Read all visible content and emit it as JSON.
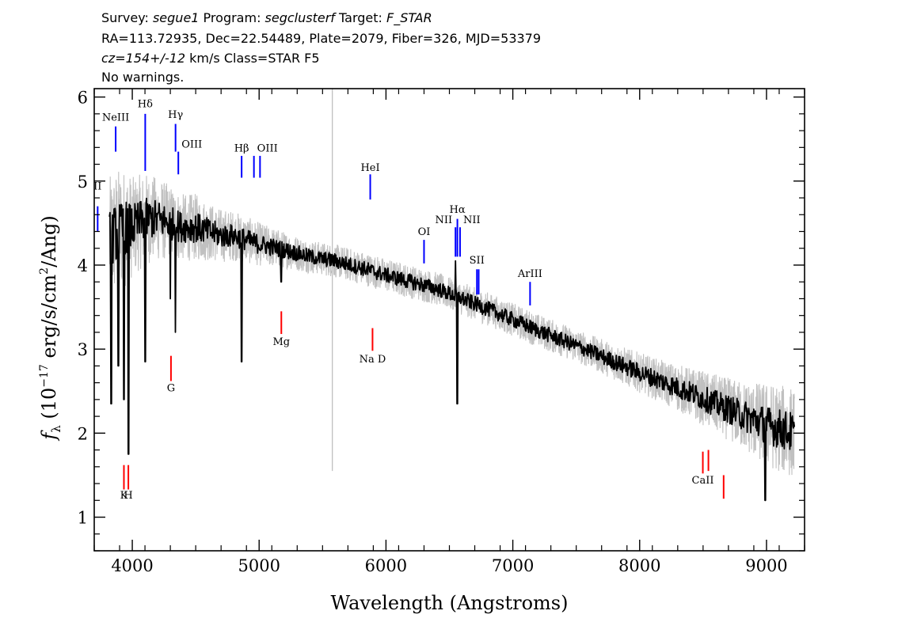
{
  "header": {
    "survey_label": "Survey: ",
    "survey": "segue1",
    "program_label": " Program: ",
    "program": "segclusterf",
    "target_label": " Target: ",
    "target": "F_STAR",
    "line2": "RA=113.72935, Dec=22.54489, Plate=2079, Fiber=326, MJD=53379",
    "cz": "cz=154+/-12",
    "line3_rest": " km/s Class=STAR F5",
    "line4": "No warnings."
  },
  "chart_data": {
    "type": "line",
    "xlabel": "Wavelength (Angstroms)",
    "ylabel_prefix": "f",
    "ylabel_sub": "λ",
    "ylabel_main": " (10",
    "ylabel_exp": "−17",
    "ylabel_rest": " erg/s/cm",
    "ylabel_exp2": "2",
    "ylabel_end": "/Ang)",
    "xlim": [
      3700,
      9300
    ],
    "ylim": [
      0.6,
      6.1
    ],
    "x_ticks": [
      4000,
      5000,
      6000,
      7000,
      8000,
      9000
    ],
    "y_ticks": [
      1,
      2,
      3,
      4,
      5,
      6
    ],
    "x_tick_labels": [
      "4000",
      "5000",
      "6000",
      "7000",
      "8000",
      "9000"
    ],
    "y_tick_labels": [
      "1",
      "2",
      "3",
      "4",
      "5",
      "6"
    ],
    "series": [
      {
        "role": "error_band",
        "color": "#c0c0c0",
        "x": [
          3820,
          3880,
          3950,
          4000,
          4100,
          4200,
          4300,
          4400,
          4500,
          4600,
          4700,
          4800,
          4900,
          5000,
          5200,
          5400,
          5600,
          5800,
          6000,
          6200,
          6400,
          6600,
          6800,
          7000,
          7200,
          7400,
          7600,
          7800,
          8000,
          8200,
          8400,
          8600,
          8800,
          9000,
          9220
        ],
        "y": [
          4.3,
          4.4,
          4.45,
          4.45,
          4.55,
          4.55,
          4.5,
          4.45,
          4.45,
          4.4,
          4.35,
          4.35,
          4.3,
          4.25,
          4.18,
          4.1,
          4.05,
          3.97,
          3.88,
          3.8,
          3.72,
          3.6,
          3.48,
          3.35,
          3.22,
          3.1,
          2.98,
          2.85,
          2.72,
          2.6,
          2.48,
          2.35,
          2.22,
          2.1,
          2.0
        ],
        "halfwidth": [
          0.75,
          0.75,
          0.7,
          0.6,
          0.55,
          0.5,
          0.45,
          0.4,
          0.4,
          0.35,
          0.32,
          0.3,
          0.28,
          0.26,
          0.22,
          0.2,
          0.2,
          0.2,
          0.2,
          0.2,
          0.2,
          0.2,
          0.2,
          0.2,
          0.2,
          0.2,
          0.2,
          0.22,
          0.24,
          0.26,
          0.3,
          0.35,
          0.4,
          0.5,
          0.55
        ]
      },
      {
        "role": "spectrum",
        "color": "#000000",
        "x": [
          3820,
          3880,
          3950,
          4000,
          4100,
          4200,
          4300,
          4400,
          4500,
          4600,
          4700,
          4800,
          4900,
          5000,
          5200,
          5400,
          5600,
          5800,
          6000,
          6200,
          6400,
          6600,
          6800,
          7000,
          7200,
          7400,
          7600,
          7800,
          8000,
          8200,
          8400,
          8600,
          8800,
          9000,
          9220
        ],
        "y": [
          4.3,
          4.4,
          4.45,
          4.45,
          4.55,
          4.55,
          4.5,
          4.45,
          4.45,
          4.4,
          4.35,
          4.35,
          4.3,
          4.25,
          4.18,
          4.1,
          4.05,
          3.97,
          3.88,
          3.8,
          3.72,
          3.6,
          3.48,
          3.35,
          3.22,
          3.1,
          2.98,
          2.85,
          2.72,
          2.6,
          2.48,
          2.35,
          2.22,
          2.1,
          2.0
        ],
        "absorption_features": [
          {
            "x": 3835,
            "y": 2.35
          },
          {
            "x": 3890,
            "y": 2.8
          },
          {
            "x": 3933,
            "y": 2.4
          },
          {
            "x": 3970,
            "y": 1.75
          },
          {
            "x": 4102,
            "y": 2.85
          },
          {
            "x": 4300,
            "y": 3.6
          },
          {
            "x": 4340,
            "y": 3.2
          },
          {
            "x": 4861,
            "y": 2.85
          },
          {
            "x": 5175,
            "y": 3.8
          },
          {
            "x": 6563,
            "y": 2.35
          },
          {
            "x": 8990,
            "y": 1.2
          }
        ],
        "emission_features": [
          {
            "x": 6548,
            "y": 4.05
          }
        ]
      },
      {
        "role": "sky_line",
        "color": "#c0c0c0",
        "x": [
          5577,
          5577
        ],
        "y": [
          1.55,
          6.1
        ]
      }
    ],
    "line_markers": [
      {
        "label": "NeIII",
        "x": 3869,
        "y1": 5.35,
        "y2": 5.65,
        "color": "#0000ff",
        "label_y": 5.72,
        "anchor": "middle"
      },
      {
        "label": "Hδ",
        "x": 4102,
        "y1": 5.12,
        "y2": 5.8,
        "color": "#0000ff",
        "label_y": 5.88,
        "anchor": "middle"
      },
      {
        "label": "Hγ",
        "x": 4341,
        "y1": 5.35,
        "y2": 5.68,
        "color": "#0000ff",
        "label_y": 5.75,
        "anchor": "middle"
      },
      {
        "label": "OIII",
        "x": 4363,
        "y1": 5.08,
        "y2": 5.35,
        "color": "#0000ff",
        "label_y": 5.4,
        "anchor": "start"
      },
      {
        "label": "Hβ",
        "x": 4862,
        "y1": 5.04,
        "y2": 5.3,
        "color": "#0000ff",
        "label_y": 5.35,
        "anchor": "middle"
      },
      {
        "label": "OIII",
        "x": 4959,
        "y1": 5.04,
        "y2": 5.3,
        "color": "#0000ff",
        "label_y": 5.35,
        "anchor": "start"
      },
      {
        "label": "",
        "x": 5007,
        "y1": 5.04,
        "y2": 5.3,
        "color": "#0000ff",
        "label_y": 5.35,
        "anchor": "start"
      },
      {
        "label": "HeI",
        "x": 5876,
        "y1": 4.78,
        "y2": 5.08,
        "color": "#0000ff",
        "label_y": 5.12,
        "anchor": "middle"
      },
      {
        "label": "OI",
        "x": 6300,
        "y1": 4.02,
        "y2": 4.3,
        "color": "#0000ff",
        "label_y": 4.36,
        "anchor": "middle"
      },
      {
        "label": "NII",
        "x": 6548,
        "y1": 4.1,
        "y2": 4.45,
        "color": "#0000ff",
        "label_y": 4.5,
        "anchor": "end"
      },
      {
        "label": "Hα",
        "x": 6563,
        "y1": 4.1,
        "y2": 4.55,
        "color": "#0000ff",
        "label_y": 4.62,
        "anchor": "middle"
      },
      {
        "label": "NII",
        "x": 6584,
        "y1": 4.1,
        "y2": 4.45,
        "color": "#0000ff",
        "label_y": 4.5,
        "anchor": "start"
      },
      {
        "label": "SII",
        "x": 6717,
        "y1": 3.65,
        "y2": 3.95,
        "color": "#0000ff",
        "label_y": 4.02,
        "anchor": "middle"
      },
      {
        "label": "",
        "x": 6731,
        "y1": 3.65,
        "y2": 3.95,
        "color": "#0000ff",
        "label_y": 4.02,
        "anchor": "middle"
      },
      {
        "label": "ArIII",
        "x": 7136,
        "y1": 3.52,
        "y2": 3.8,
        "color": "#0000ff",
        "label_y": 3.86,
        "anchor": "middle"
      },
      {
        "label": "II",
        "x": 3727,
        "y1": 4.4,
        "y2": 4.7,
        "color": "#0000ff",
        "label_y": 4.9,
        "anchor": "middle"
      },
      {
        "label": "K",
        "x": 3934,
        "y1": 1.33,
        "y2": 1.62,
        "color": "#ff0000",
        "label_y": 1.22,
        "anchor": "middle"
      },
      {
        "label": "H",
        "x": 3969,
        "y1": 1.33,
        "y2": 1.62,
        "color": "#ff0000",
        "label_y": 1.22,
        "anchor": "middle"
      },
      {
        "label": "G",
        "x": 4305,
        "y1": 2.62,
        "y2": 2.92,
        "color": "#ff0000",
        "label_y": 2.5,
        "anchor": "middle"
      },
      {
        "label": "Mg",
        "x": 5175,
        "y1": 3.18,
        "y2": 3.45,
        "color": "#ff0000",
        "label_y": 3.05,
        "anchor": "middle"
      },
      {
        "label": "Na D",
        "x": 5894,
        "y1": 2.98,
        "y2": 3.25,
        "color": "#ff0000",
        "label_y": 2.84,
        "anchor": "middle"
      },
      {
        "label": "CaII",
        "x": 8498,
        "y1": 1.52,
        "y2": 1.78,
        "color": "#ff0000",
        "label_y": 1.4,
        "anchor": "middle"
      },
      {
        "label": "",
        "x": 8542,
        "y1": 1.55,
        "y2": 1.8,
        "color": "#ff0000",
        "label_y": 1.4,
        "anchor": "middle"
      },
      {
        "label": "",
        "x": 8662,
        "y1": 1.22,
        "y2": 1.5,
        "color": "#ff0000",
        "label_y": 1.4,
        "anchor": "middle"
      }
    ]
  }
}
